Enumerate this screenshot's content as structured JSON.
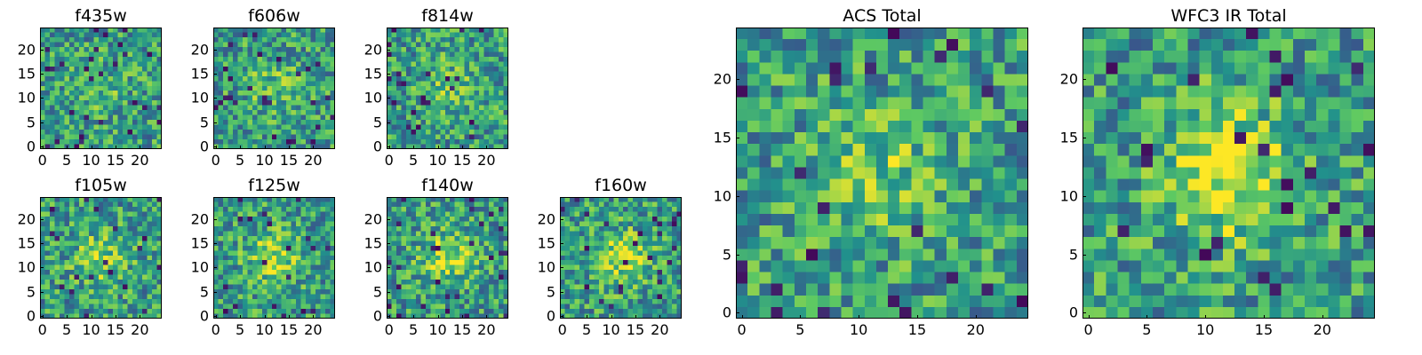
{
  "figure": {
    "colormap": [
      "#440154",
      "#3b528b",
      "#21918c",
      "#5ec962",
      "#fde725"
    ]
  },
  "chart_data": [
    {
      "type": "heatmap",
      "title": "f435w",
      "size": 25,
      "seed": 11,
      "blob": 0.3,
      "xticks": [
        "0",
        "5",
        "10",
        "15",
        "20"
      ],
      "yticks": [
        "0",
        "5",
        "10",
        "15",
        "20"
      ]
    },
    {
      "type": "heatmap",
      "title": "f606w",
      "size": 25,
      "seed": 23,
      "blob": 0.5,
      "xticks": [
        "0",
        "5",
        "10",
        "15",
        "20"
      ],
      "yticks": [
        "0",
        "5",
        "10",
        "15",
        "20"
      ]
    },
    {
      "type": "heatmap",
      "title": "f814w",
      "size": 25,
      "seed": 37,
      "blob": 0.5,
      "xticks": [
        "0",
        "5",
        "10",
        "15",
        "20"
      ],
      "yticks": [
        "0",
        "5",
        "10",
        "15",
        "20"
      ]
    },
    {
      "type": "heatmap",
      "title": "f105w",
      "size": 25,
      "seed": 41,
      "blob": 0.7,
      "xticks": [
        "0",
        "5",
        "10",
        "15",
        "20"
      ],
      "yticks": [
        "0",
        "5",
        "10",
        "15",
        "20"
      ]
    },
    {
      "type": "heatmap",
      "title": "f125w",
      "size": 25,
      "seed": 53,
      "blob": 0.9,
      "xticks": [
        "0",
        "5",
        "10",
        "15",
        "20"
      ],
      "yticks": [
        "0",
        "5",
        "10",
        "15",
        "20"
      ]
    },
    {
      "type": "heatmap",
      "title": "f140w",
      "size": 25,
      "seed": 67,
      "blob": 0.9,
      "xticks": [
        "0",
        "5",
        "10",
        "15",
        "20"
      ],
      "yticks": [
        "0",
        "5",
        "10",
        "15",
        "20"
      ]
    },
    {
      "type": "heatmap",
      "title": "f160w",
      "size": 25,
      "seed": 79,
      "blob": 0.9,
      "xticks": [
        "0",
        "5",
        "10",
        "15",
        "20"
      ],
      "yticks": [
        "0",
        "5",
        "10",
        "15",
        "20"
      ]
    },
    {
      "type": "heatmap",
      "title": "ACS Total",
      "size": 25,
      "seed": 97,
      "blob": 0.6,
      "xticks": [
        "0",
        "5",
        "10",
        "15",
        "20"
      ],
      "yticks": [
        "0",
        "5",
        "10",
        "15",
        "20"
      ]
    },
    {
      "type": "heatmap",
      "title": "WFC3 IR Total",
      "size": 25,
      "seed": 131,
      "blob": 1.2,
      "xticks": [
        "0",
        "5",
        "10",
        "15",
        "20"
      ],
      "yticks": [
        "0",
        "5",
        "10",
        "15",
        "20"
      ]
    }
  ]
}
